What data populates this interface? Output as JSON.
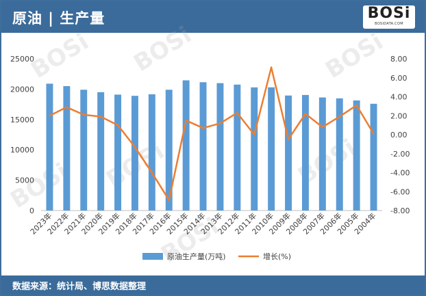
{
  "header": {
    "title": "原油 | 生产量",
    "logo_text": "BOSi",
    "logo_sub": "BOSIDATA.COM"
  },
  "footer": {
    "source": "数据来源：统计局、博思数据整理"
  },
  "watermark": {
    "text": "BOSi"
  },
  "colors": {
    "bar": "#5b9bd5",
    "line": "#ed7d31",
    "header": "#3a6b9a"
  },
  "chart_data": {
    "type": "bar",
    "categories": [
      "2023年",
      "2022年",
      "2021年",
      "2020年",
      "2019年",
      "2018年",
      "2017年",
      "2016年",
      "2015年",
      "2014年",
      "2013年",
      "2012年",
      "2011年",
      "2010年",
      "2009年",
      "2008年",
      "2007年",
      "2006年",
      "2005年",
      "2004年"
    ],
    "series": [
      {
        "name": "原油生产量(万吨)",
        "type": "bar",
        "axis": "left",
        "values": [
          20900,
          20500,
          19900,
          19500,
          19100,
          18900,
          19150,
          19900,
          21450,
          21140,
          20990,
          20750,
          20290,
          20300,
          18950,
          19040,
          18630,
          18480,
          18140,
          17590
        ]
      },
      {
        "name": "增长(%)",
        "type": "line",
        "axis": "right",
        "values": [
          2.0,
          2.9,
          2.1,
          1.9,
          1.0,
          -1.3,
          -4.0,
          -6.9,
          1.5,
          0.7,
          1.2,
          2.3,
          0.0,
          7.1,
          -0.5,
          2.2,
          0.8,
          1.9,
          3.1,
          0.1
        ]
      }
    ],
    "y_left": {
      "ticks": [
        "0",
        "5000",
        "10000",
        "15000",
        "20000",
        "25000"
      ],
      "ylim": [
        0,
        25000
      ]
    },
    "y_right": {
      "ticks": [
        "-8.00",
        "-6.00",
        "-4.00",
        "-2.00",
        "0.00",
        "2.00",
        "4.00",
        "6.00",
        "8.00"
      ],
      "ylim": [
        -8,
        8
      ]
    },
    "grid": false,
    "legend": "bottom"
  }
}
